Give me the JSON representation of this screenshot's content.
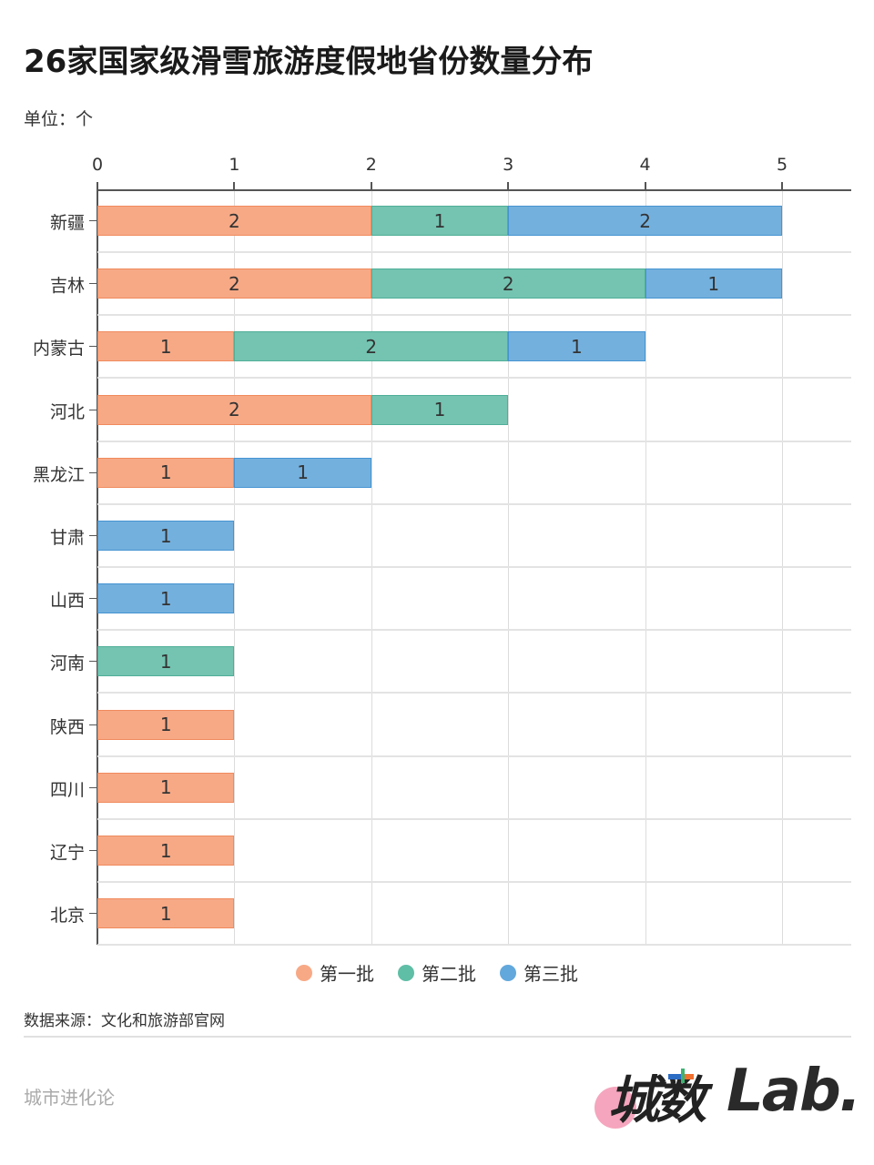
{
  "header": {
    "title": "26家国家级滑雪旅游度假地省份数量分布",
    "unit": "单位：个"
  },
  "colors": {
    "batch1": "#f7a986",
    "batch2": "#74c4b1",
    "batch3": "#74b0dd"
  },
  "chart_data": {
    "type": "bar",
    "orientation": "horizontal",
    "stacked": true,
    "title": "26家国家级滑雪旅游度假地省份数量分布",
    "subtitle": "单位：个",
    "xlabel": "",
    "ylabel": "",
    "xlim": [
      0,
      5.5
    ],
    "x_ticks": [
      "0",
      "1",
      "2",
      "3",
      "4",
      "5"
    ],
    "x_axis_position": "top",
    "grid": true,
    "legend_position": "bottom",
    "categories": [
      "新疆",
      "吉林",
      "内蒙古",
      "河北",
      "黑龙江",
      "甘肃",
      "山西",
      "河南",
      "陕西",
      "四川",
      "辽宁",
      "北京"
    ],
    "series": [
      {
        "name": "第一批",
        "color": "#f7a986",
        "values": [
          2,
          2,
          1,
          2,
          1,
          0,
          0,
          0,
          1,
          1,
          1,
          1
        ]
      },
      {
        "name": "第二批",
        "color": "#74c4b1",
        "values": [
          1,
          2,
          2,
          1,
          0,
          0,
          0,
          1,
          0,
          0,
          0,
          0
        ]
      },
      {
        "name": "第三批",
        "color": "#74b0dd",
        "values": [
          2,
          1,
          1,
          0,
          1,
          1,
          1,
          0,
          0,
          0,
          0,
          0
        ]
      }
    ]
  },
  "legend": [
    {
      "label": "第一批",
      "color": "#f7a986"
    },
    {
      "label": "第二批",
      "color": "#5fbea6"
    },
    {
      "label": "第三批",
      "color": "#62a8dc"
    }
  ],
  "footer": {
    "source": "数据来源：文化和旅游部官网",
    "brand": "城市进化论",
    "logo_cn": "城数",
    "logo_en": "Lab."
  }
}
